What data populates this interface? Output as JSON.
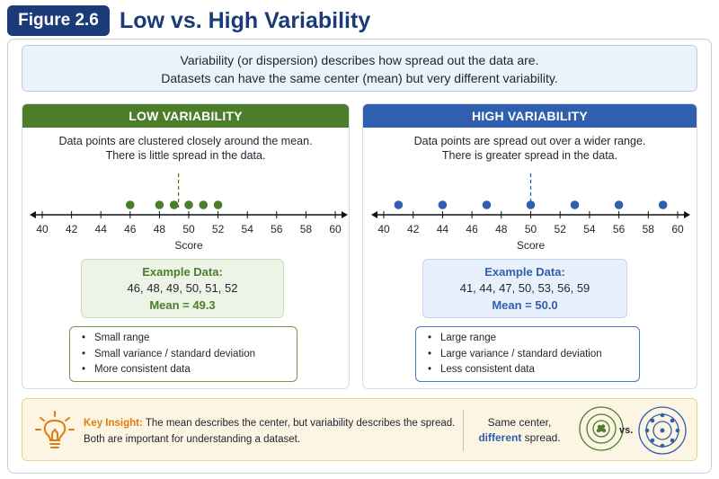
{
  "header": {
    "figure_label": "Figure 2.6",
    "title": "Low vs. High Variability"
  },
  "intro": {
    "line1": "Variability (or dispersion) describes how spread out the data are.",
    "line2": "Datasets can have the same center (mean) but very different variability."
  },
  "low": {
    "heading": "LOW VARIABILITY",
    "desc_line1": "Data points are clustered closely around the mean.",
    "desc_line2": "There is little spread in the data.",
    "color": "#4b7d2b",
    "example_title": "Example Data:",
    "example_values": "46, 48, 49, 50, 51, 52",
    "mean_text": "Mean = 49.3",
    "bullets": [
      "Small range",
      "Small variance / standard deviation",
      "More consistent data"
    ]
  },
  "high": {
    "heading": "HIGH VARIABILITY",
    "desc_line1": "Data points are spread out over a wider range.",
    "desc_line2": "There is greater spread in the data.",
    "color": "#2f5fae",
    "example_title": "Example Data:",
    "example_values": "41, 44, 47, 50, 53, 56, 59",
    "mean_text": "Mean = 50.0",
    "bullets": [
      "Large range",
      "Large variance / standard deviation",
      "Less consistent data"
    ]
  },
  "chart_data": [
    {
      "type": "scatter",
      "xlabel": "Score",
      "xlim": [
        40,
        60
      ],
      "ticks": [
        40,
        42,
        44,
        46,
        48,
        50,
        52,
        54,
        56,
        58,
        60
      ],
      "points": [
        46,
        48,
        49,
        50,
        51,
        52
      ],
      "mean": 49.3,
      "color": "#4b7d2b"
    },
    {
      "type": "scatter",
      "xlabel": "Score",
      "xlim": [
        40,
        60
      ],
      "ticks": [
        40,
        42,
        44,
        46,
        48,
        50,
        52,
        54,
        56,
        58,
        60
      ],
      "points": [
        41,
        44,
        47,
        50,
        53,
        56,
        59
      ],
      "mean": 50.0,
      "color": "#2f5fae"
    }
  ],
  "insight": {
    "key_label": "Key Insight:",
    "line1": "The mean describes the center, but variability describes the spread.",
    "line2": "Both are important for understanding a dataset.",
    "same_center": "Same center,",
    "different": "different",
    "spread": "spread.",
    "vs": "vs.",
    "accent_color": "#e07b12"
  }
}
